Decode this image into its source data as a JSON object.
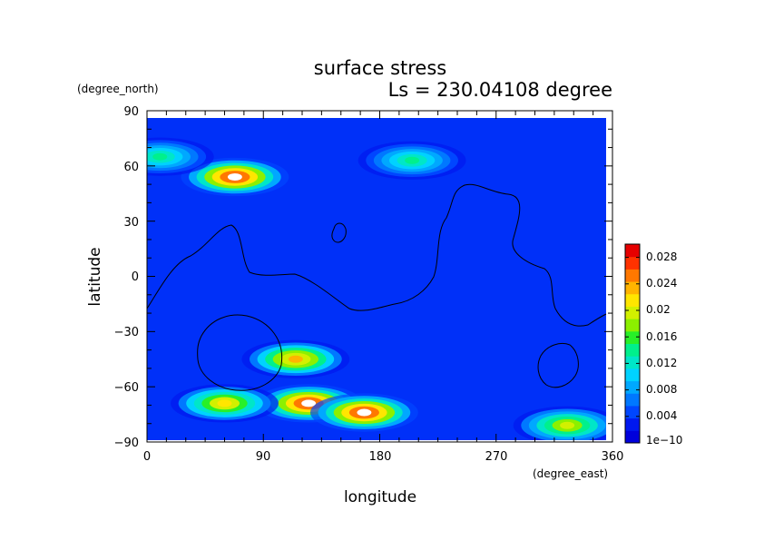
{
  "chart_data": {
    "type": "heatmap",
    "title": "surface stress",
    "subtitle": "Ls = 230.04108 degree",
    "xlabel": "longitude",
    "ylabel": "latitude",
    "x_units": "(degree_east)",
    "y_units": "(degree_north)",
    "xlim": [
      0,
      360
    ],
    "ylim": [
      -90,
      90
    ],
    "x_ticks": [
      "0",
      "90",
      "180",
      "270",
      "360"
    ],
    "y_ticks": [
      "90",
      "60",
      "30",
      "0",
      "−30",
      "−60",
      "−90"
    ],
    "colorbar": {
      "min": 1e-10,
      "max": 0.03,
      "tick_labels": [
        "1e−10",
        "0.004",
        "0.008",
        "0.012",
        "0.016",
        "0.02",
        "0.024",
        "0.028"
      ],
      "colors": [
        "#0000dc",
        "#0018f0",
        "#0046ff",
        "#0078ff",
        "#00a8ff",
        "#00d2ff",
        "#00e6c8",
        "#00f08c",
        "#28f028",
        "#8cf000",
        "#d2f000",
        "#ffe600",
        "#ffb400",
        "#ff7800",
        "#ff3200",
        "#e60000"
      ]
    },
    "hotspots": [
      {
        "lon": 68,
        "lat": 54,
        "value": 0.03
      },
      {
        "lon": 125,
        "lat": -69,
        "value": 0.03
      },
      {
        "lon": 168,
        "lat": -74,
        "value": 0.03
      },
      {
        "lon": 115,
        "lat": -45,
        "value": 0.024
      },
      {
        "lon": 60,
        "lat": -69,
        "value": 0.022
      },
      {
        "lon": 325,
        "lat": -81,
        "value": 0.02
      },
      {
        "lon": 205,
        "lat": 63,
        "value": 0.014
      },
      {
        "lon": 10,
        "lat": 65,
        "value": 0.014
      }
    ]
  }
}
